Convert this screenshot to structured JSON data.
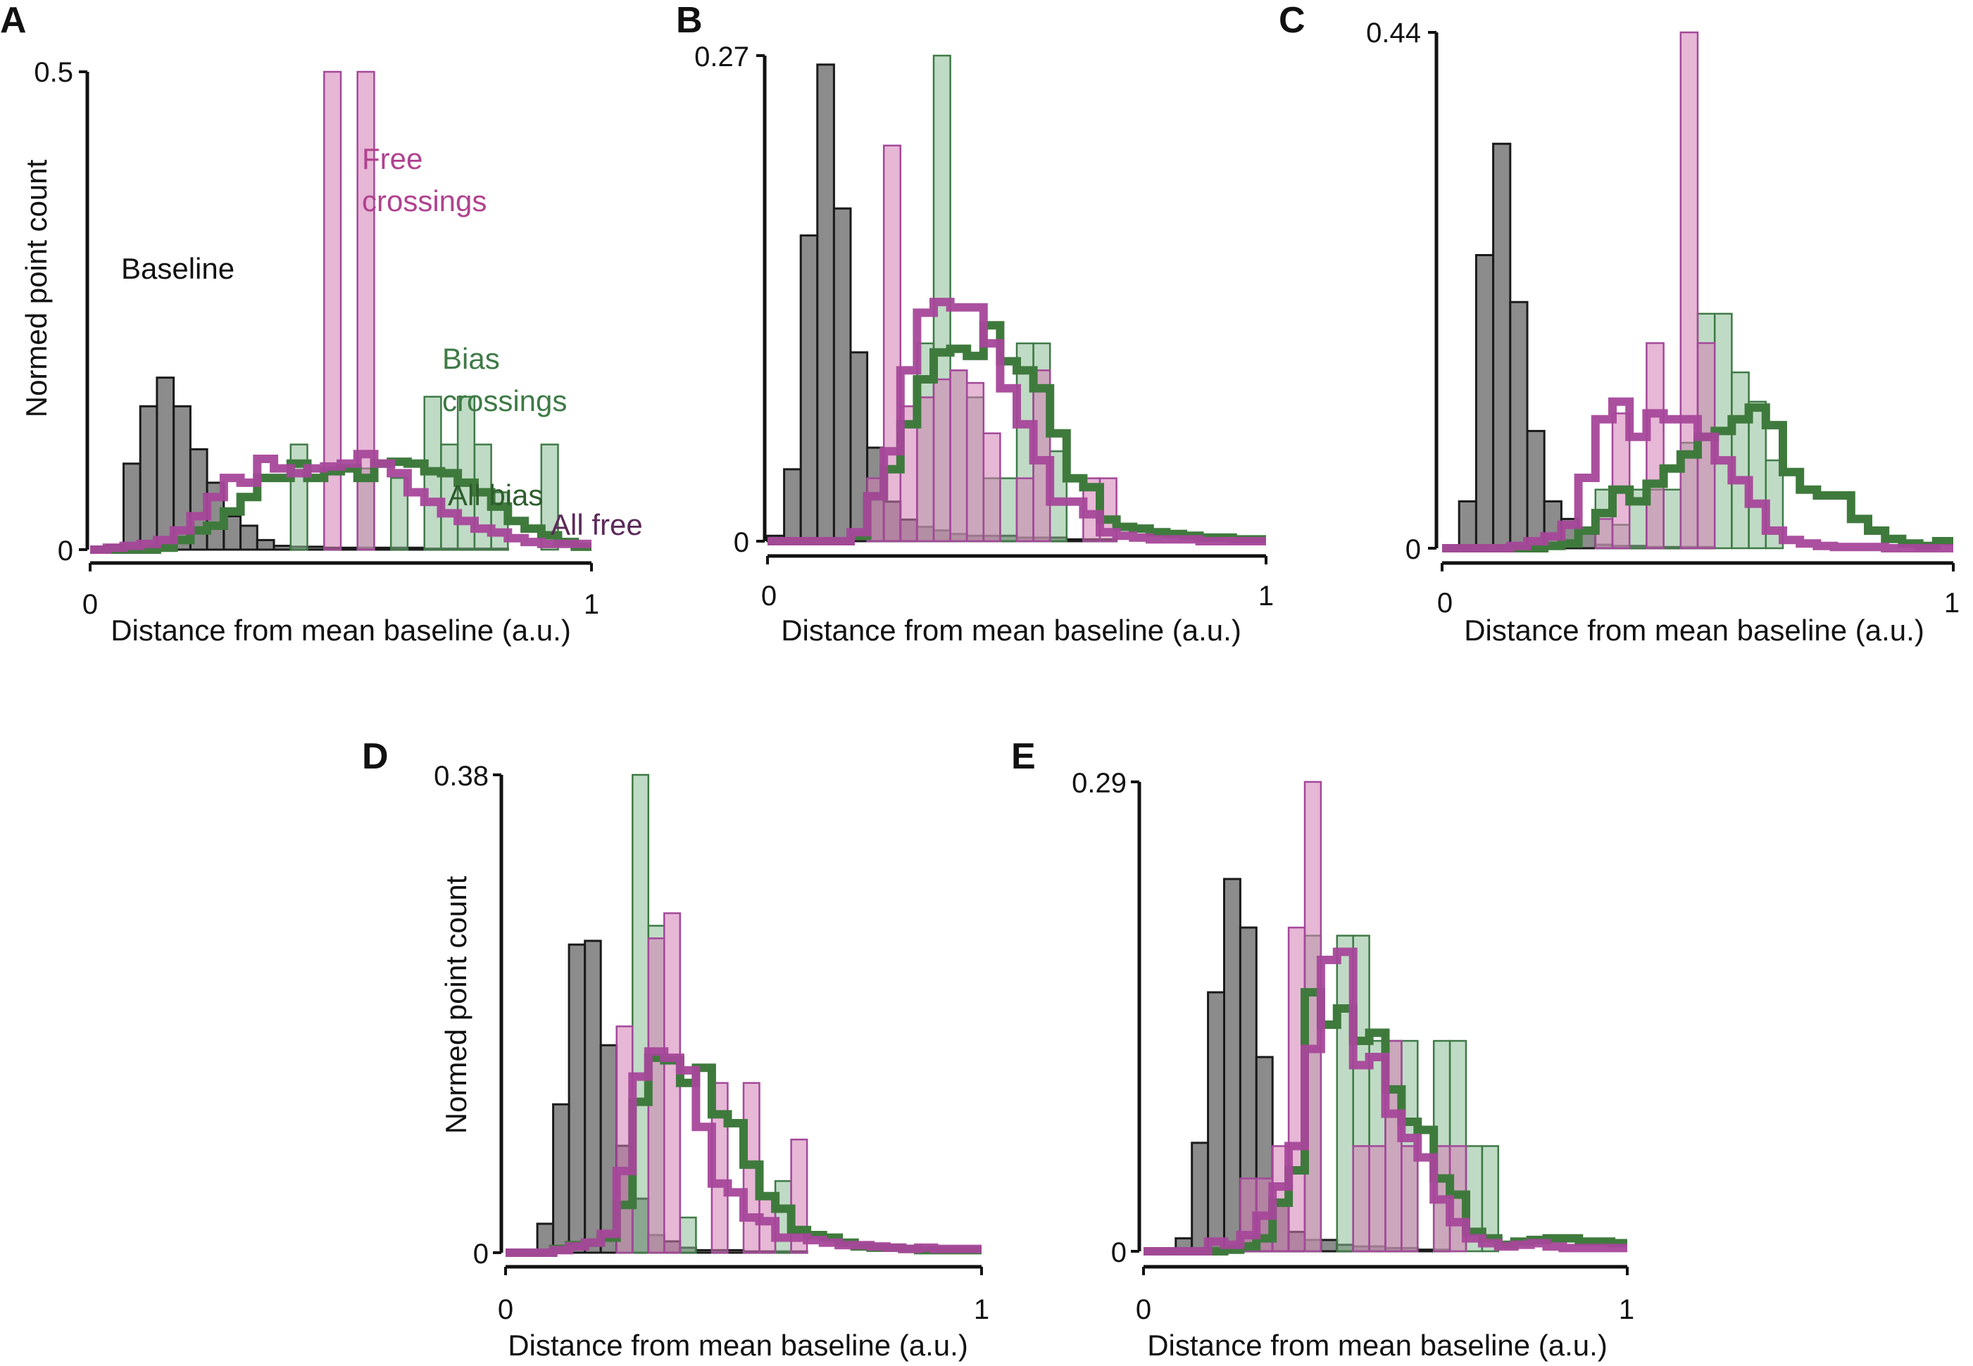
{
  "figure": {
    "series_styles": {
      "baseline": {
        "fill": "#8c8c8c",
        "stroke": "#1a1a1a"
      },
      "free_crossings": {
        "fill": "#d37cb4",
        "stroke": "#a3489a"
      },
      "bias_crossings": {
        "fill": "#8dbd95",
        "stroke": "#3e7a46"
      },
      "all_bias": {
        "stroke": "#3f7a3d"
      },
      "all_free": {
        "stroke": "#a7479a"
      }
    }
  },
  "chart_data": [
    {
      "panel": "A",
      "type": "bar",
      "subtype": "step-histogram",
      "xlabel": "Distance from mean baseline (a.u.)",
      "ylabel": "Normed point count",
      "xlim": [
        0,
        1
      ],
      "ylim": [
        0,
        0.5
      ],
      "xticks": [
        "0",
        "1"
      ],
      "yticks": [
        "0",
        "0.5"
      ],
      "bin_width": 0.0333,
      "labels": {
        "baseline": "Baseline",
        "free_crossings": "Free crossings",
        "bias_crossings": "Bias crossings",
        "all_bias": "All bias",
        "all_free": "All free"
      },
      "series": [
        {
          "name": "Baseline",
          "key": "baseline",
          "kind": "filled",
          "values": [
            0,
            0.005,
            0.09,
            0.15,
            0.18,
            0.15,
            0.105,
            0.07,
            0.035,
            0.025,
            0.01,
            0.004,
            0.003,
            0.003,
            0.002,
            0.002,
            0.002,
            0.002,
            0.002,
            0.002,
            0.001,
            0.001,
            0.001,
            0.001,
            0.001,
            0,
            0,
            0,
            0,
            0
          ]
        },
        {
          "name": "Free crossings",
          "key": "free_crossings",
          "kind": "filled",
          "values": [
            0,
            0,
            0,
            0,
            0,
            0,
            0,
            0,
            0,
            0,
            0,
            0,
            0,
            0,
            0.5,
            0,
            0.5,
            0,
            0,
            0,
            0,
            0,
            0,
            0,
            0,
            0,
            0,
            0,
            0,
            0
          ]
        },
        {
          "name": "Bias crossings",
          "key": "bias_crossings",
          "kind": "filled",
          "values": [
            0,
            0,
            0,
            0,
            0,
            0,
            0,
            0,
            0,
            0,
            0,
            0,
            0.11,
            0,
            0,
            0,
            0.085,
            0,
            0.075,
            0,
            0.16,
            0.11,
            0.16,
            0.11,
            0.06,
            0,
            0,
            0.11,
            0,
            0
          ]
        },
        {
          "name": "All bias",
          "key": "all_bias",
          "kind": "step",
          "values": [
            0,
            0,
            0,
            0,
            0.002,
            0.01,
            0.02,
            0.025,
            0.04,
            0.055,
            0.075,
            0.075,
            0.09,
            0.075,
            0.082,
            0.085,
            0.075,
            0.09,
            0.092,
            0.09,
            0.082,
            0.08,
            0.07,
            0.06,
            0.045,
            0.03,
            0.022,
            0.015,
            0.008,
            0.003
          ]
        },
        {
          "name": "All free",
          "key": "all_free",
          "kind": "step",
          "values": [
            0,
            0.002,
            0.004,
            0.006,
            0.01,
            0.02,
            0.035,
            0.055,
            0.075,
            0.07,
            0.095,
            0.085,
            0.08,
            0.085,
            0.087,
            0.09,
            0.1,
            0.09,
            0.08,
            0.06,
            0.05,
            0.038,
            0.03,
            0.022,
            0.018,
            0.012,
            0.008,
            0.006,
            0.006,
            0.006
          ]
        }
      ]
    },
    {
      "panel": "B",
      "type": "bar",
      "subtype": "step-histogram",
      "xlabel": "Distance from mean baseline (a.u.)",
      "ylabel": "",
      "xlim": [
        0,
        1
      ],
      "ylim": [
        0,
        0.27
      ],
      "xticks": [
        "0",
        "1"
      ],
      "yticks": [
        "0",
        "0.27"
      ],
      "bin_width": 0.0333,
      "series": [
        {
          "name": "Baseline",
          "key": "baseline",
          "kind": "filled",
          "values": [
            0.003,
            0.04,
            0.17,
            0.265,
            0.185,
            0.105,
            0.052,
            0.022,
            0.012,
            0.008,
            0.006,
            0.004,
            0.003,
            0.003,
            0.003,
            0.002,
            0.002,
            0.002,
            0.001,
            0.001,
            0.001,
            0,
            0,
            0,
            0,
            0,
            0,
            0,
            0,
            0
          ]
        },
        {
          "name": "Free crossings",
          "key": "free_crossings",
          "kind": "filled",
          "values": [
            0,
            0,
            0,
            0,
            0,
            0,
            0.035,
            0.22,
            0.075,
            0.08,
            0.09,
            0.095,
            0.088,
            0.06,
            0,
            0.035,
            0.095,
            0.0,
            0,
            0.035,
            0.035,
            0,
            0,
            0,
            0,
            0,
            0,
            0,
            0,
            0
          ]
        },
        {
          "name": "Bias crossings",
          "key": "bias_crossings",
          "kind": "filled",
          "values": [
            0,
            0,
            0,
            0,
            0,
            0,
            0,
            0,
            0,
            0.11,
            0.27,
            0.095,
            0.08,
            0.035,
            0.035,
            0.11,
            0.11,
            0.05,
            0,
            0,
            0,
            0,
            0,
            0,
            0,
            0,
            0,
            0,
            0,
            0
          ]
        },
        {
          "name": "All bias",
          "key": "all_bias",
          "kind": "step",
          "values": [
            0,
            0,
            0,
            0,
            0,
            0.003,
            0.025,
            0.04,
            0.065,
            0.09,
            0.105,
            0.107,
            0.103,
            0.12,
            0.1,
            0.095,
            0.085,
            0.06,
            0.035,
            0.03,
            0.012,
            0.008,
            0.007,
            0.005,
            0.004,
            0.003,
            0.002,
            0.002,
            0.001,
            0.001
          ]
        },
        {
          "name": "All free",
          "key": "all_free",
          "kind": "step",
          "values": [
            0,
            0,
            0,
            0,
            0,
            0.005,
            0.025,
            0.05,
            0.095,
            0.127,
            0.133,
            0.13,
            0.13,
            0.11,
            0.085,
            0.065,
            0.045,
            0.022,
            0.022,
            0.015,
            0.005,
            0.003,
            0.002,
            0.001,
            0.001,
            0.001,
            0,
            0,
            0,
            0
          ]
        }
      ]
    },
    {
      "panel": "C",
      "type": "bar",
      "subtype": "step-histogram",
      "xlabel": "Distance from mean baseline (a.u.)",
      "ylabel": "",
      "xlim": [
        0,
        1
      ],
      "ylim": [
        0,
        0.44
      ],
      "xticks": [
        "0",
        "1"
      ],
      "yticks": [
        "0",
        "0.44"
      ],
      "bin_width": 0.0333,
      "series": [
        {
          "name": "Baseline",
          "key": "baseline",
          "kind": "filled",
          "values": [
            0,
            0.04,
            0.25,
            0.345,
            0.21,
            0.1,
            0.04,
            0.025,
            0.015,
            0.003,
            0.002,
            0.002,
            0.001,
            0.001,
            0.001,
            0.001,
            0,
            0,
            0,
            0,
            0,
            0,
            0,
            0,
            0,
            0,
            0,
            0,
            0,
            0
          ]
        },
        {
          "name": "Free crossings",
          "key": "free_crossings",
          "kind": "filled",
          "values": [
            0,
            0,
            0,
            0,
            0,
            0,
            0,
            0,
            0,
            0.025,
            0.115,
            0.0,
            0.175,
            0.0,
            0.44,
            0.175,
            0,
            0,
            0,
            0,
            0,
            0,
            0,
            0,
            0,
            0,
            0,
            0,
            0,
            0
          ]
        },
        {
          "name": "Bias crossings",
          "key": "bias_crossings",
          "kind": "filled",
          "values": [
            0,
            0,
            0,
            0,
            0,
            0,
            0,
            0,
            0,
            0.05,
            0.02,
            0.05,
            0.05,
            0.05,
            0.09,
            0.2,
            0.2,
            0.15,
            0.125,
            0.075,
            0,
            0,
            0,
            0,
            0,
            0,
            0,
            0,
            0,
            0
          ]
        },
        {
          "name": "All bias",
          "key": "all_bias",
          "kind": "step",
          "values": [
            0,
            0,
            0,
            0,
            0,
            0,
            0.002,
            0.004,
            0.015,
            0.03,
            0.05,
            0.04,
            0.055,
            0.068,
            0.08,
            0.095,
            0.1,
            0.11,
            0.12,
            0.105,
            0.065,
            0.05,
            0.045,
            0.045,
            0.025,
            0.015,
            0.008,
            0.004,
            0.002,
            0.006
          ]
        },
        {
          "name": "All free",
          "key": "all_free",
          "kind": "step",
          "values": [
            0,
            0,
            0,
            0,
            0.002,
            0.006,
            0.01,
            0.02,
            0.06,
            0.11,
            0.125,
            0.095,
            0.115,
            0.11,
            0.11,
            0.095,
            0.075,
            0.058,
            0.038,
            0.015,
            0.007,
            0.004,
            0.002,
            0.001,
            0.001,
            0.001,
            0,
            0,
            0,
            0
          ]
        }
      ]
    },
    {
      "panel": "D",
      "type": "bar",
      "subtype": "step-histogram",
      "xlabel": "Distance from mean baseline (a.u.)",
      "ylabel": "Normed point count",
      "xlim": [
        0,
        1
      ],
      "ylim": [
        0,
        0.38
      ],
      "xticks": [
        "0",
        "1"
      ],
      "yticks": [
        "0",
        "0.38"
      ],
      "bin_width": 0.0333,
      "series": [
        {
          "name": "Baseline",
          "key": "baseline",
          "kind": "filled",
          "values": [
            0,
            0.002,
            0.023,
            0.118,
            0.245,
            0.248,
            0.165,
            0.085,
            0.043,
            0.014,
            0.009,
            0.004,
            0.002,
            0.002,
            0.002,
            0.001,
            0.001,
            0.001,
            0.001,
            0,
            0,
            0,
            0,
            0,
            0,
            0,
            0,
            0,
            0,
            0
          ]
        },
        {
          "name": "Free crossings",
          "key": "free_crossings",
          "kind": "filled",
          "values": [
            0,
            0,
            0,
            0,
            0,
            0,
            0,
            0.18,
            0,
            0.25,
            0.27,
            0,
            0,
            0.135,
            0.0,
            0.135,
            0.043,
            0,
            0.09,
            0,
            0,
            0,
            0,
            0,
            0,
            0,
            0,
            0,
            0,
            0
          ]
        },
        {
          "name": "Bias crossings",
          "key": "bias_crossings",
          "kind": "filled",
          "values": [
            0,
            0,
            0,
            0,
            0,
            0,
            0,
            0.04,
            0.38,
            0.26,
            0,
            0.028,
            0,
            0,
            0,
            0,
            0,
            0.057,
            0.0,
            0,
            0,
            0,
            0,
            0,
            0,
            0,
            0,
            0,
            0,
            0
          ]
        },
        {
          "name": "All bias",
          "key": "all_bias",
          "kind": "step",
          "values": [
            0,
            0,
            0,
            0.003,
            0.006,
            0.008,
            0.012,
            0.038,
            0.12,
            0.155,
            0.153,
            0.135,
            0.147,
            0.11,
            0.103,
            0.07,
            0.045,
            0.035,
            0.018,
            0.014,
            0.012,
            0.008,
            0.005,
            0.004,
            0.004,
            0.003,
            0.002,
            0.002,
            0.002,
            0.002
          ]
        },
        {
          "name": "All free",
          "key": "all_free",
          "kind": "step",
          "values": [
            0,
            0,
            0,
            0.002,
            0.005,
            0.008,
            0.015,
            0.065,
            0.14,
            0.16,
            0.155,
            0.145,
            0.1,
            0.055,
            0.048,
            0.028,
            0.025,
            0.012,
            0.012,
            0.01,
            0.008,
            0.006,
            0.006,
            0.005,
            0.004,
            0.003,
            0.004,
            0.003,
            0.003,
            0.003
          ]
        }
      ]
    },
    {
      "panel": "E",
      "type": "bar",
      "subtype": "step-histogram",
      "xlabel": "Distance from mean baseline (a.u.)",
      "ylabel": "",
      "xlim": [
        0,
        1
      ],
      "ylim": [
        0,
        0.29
      ],
      "xticks": [
        "0",
        "1"
      ],
      "yticks": [
        "0",
        "0.29"
      ],
      "bin_width": 0.0333,
      "series": [
        {
          "name": "Baseline",
          "key": "baseline",
          "kind": "filled",
          "values": [
            0,
            0,
            0.008,
            0.067,
            0.16,
            0.23,
            0.2,
            0.12,
            0.032,
            0.012,
            0.007,
            0.007,
            0.004,
            0.003,
            0.003,
            0.002,
            0.002,
            0.001,
            0.001,
            0,
            0,
            0,
            0,
            0,
            0,
            0,
            0,
            0,
            0,
            0
          ]
        },
        {
          "name": "Free crossings",
          "key": "free_crossings",
          "kind": "filled",
          "values": [
            0,
            0,
            0,
            0,
            0,
            0,
            0.045,
            0.045,
            0.065,
            0.2,
            0.29,
            0,
            0,
            0.065,
            0.065,
            0.13,
            0.065,
            0,
            0.065,
            0.065,
            0,
            0,
            0,
            0,
            0,
            0,
            0,
            0,
            0,
            0
          ]
        },
        {
          "name": "Bias crossings",
          "key": "bias_crossings",
          "kind": "filled",
          "values": [
            0,
            0,
            0,
            0,
            0,
            0,
            0,
            0,
            0,
            0,
            0.195,
            0.0,
            0.195,
            0.195,
            0.13,
            0.13,
            0.13,
            0.0,
            0.13,
            0.13,
            0.065,
            0.065,
            0.0,
            0,
            0,
            0,
            0,
            0,
            0,
            0
          ]
        },
        {
          "name": "All bias",
          "key": "all_bias",
          "kind": "step",
          "values": [
            0,
            0,
            0,
            0,
            0,
            0.001,
            0.003,
            0.008,
            0.03,
            0.05,
            0.16,
            0.14,
            0.15,
            0.13,
            0.135,
            0.1,
            0.08,
            0.075,
            0.045,
            0.035,
            0.012,
            0.008,
            0.004,
            0.006,
            0.007,
            0.008,
            0.008,
            0.006,
            0.006,
            0.005
          ]
        },
        {
          "name": "All free",
          "key": "all_free",
          "kind": "step",
          "values": [
            0,
            0,
            0,
            0,
            0.006,
            0.004,
            0.01,
            0.022,
            0.04,
            0.065,
            0.125,
            0.18,
            0.185,
            0.115,
            0.12,
            0.085,
            0.07,
            0.058,
            0.032,
            0.018,
            0.008,
            0.005,
            0.003,
            0.004,
            0.005,
            0.003,
            0.002,
            0.002,
            0.002,
            0.002
          ]
        }
      ]
    }
  ]
}
